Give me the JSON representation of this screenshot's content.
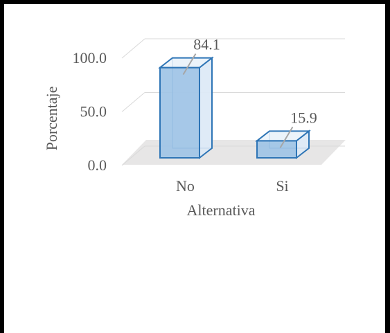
{
  "chart_data": {
    "type": "bar",
    "style": "3d-column",
    "categories": [
      "No",
      "Si"
    ],
    "values": [
      84.1,
      15.9
    ],
    "data_labels": [
      "84.1",
      "15.9"
    ],
    "title": "",
    "xlabel": "Alternativa",
    "ylabel": "Porcentaje",
    "ylim": [
      0,
      100
    ],
    "yticks": [
      0,
      50,
      100
    ],
    "ytick_labels": [
      "0.0",
      "50.0",
      "100.0"
    ],
    "grid": true,
    "legend": "none",
    "colors": {
      "bar_fill": "#9DC3E6",
      "bar_stroke": "#2E75B6",
      "floor": "#E7E6E6",
      "gridline": "#D9D9D9",
      "text": "#595959",
      "frame": "#000000"
    }
  }
}
